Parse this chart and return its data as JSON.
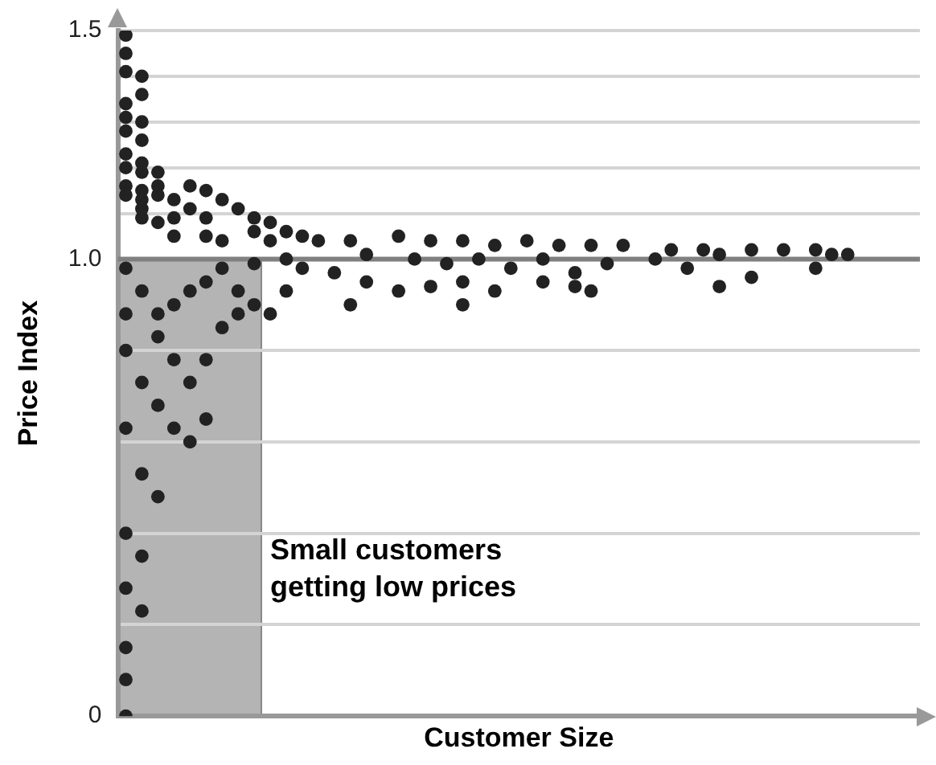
{
  "chart_data": {
    "type": "scatter",
    "xlabel": "Customer Size",
    "ylabel": "Price Index",
    "marker": "circle",
    "grid": "y",
    "tick_labels": "y",
    "legend": false,
    "ylim": [
      0,
      1.5
    ],
    "yticks": [
      0,
      {
        "value": 0.2,
        "label": null
      },
      {
        "value": 0.4,
        "label": null
      },
      {
        "value": 0.6,
        "label": null
      },
      {
        "value": 0.8,
        "label": null
      },
      {
        "value": 1,
        "label": "1.0"
      },
      {
        "value": 1.1,
        "label": null
      },
      {
        "value": 1.2,
        "label": null
      },
      {
        "value": 1.3,
        "label": null
      },
      {
        "value": 1.4,
        "label": null
      },
      1.5
    ],
    "ref_lines": [
      {
        "axis": "y",
        "value": 1,
        "color": "#808080"
      }
    ],
    "annotations": [
      "Small customers getting low prices"
    ],
    "categories": [
      null,
      null,
      null,
      null,
      null,
      null,
      null,
      null,
      null,
      null,
      null,
      null,
      null,
      null,
      null,
      null,
      null,
      null,
      null,
      null,
      null,
      null,
      null,
      null,
      null,
      null,
      null,
      null,
      null,
      null,
      null,
      null,
      null,
      null,
      null,
      null,
      null,
      null,
      null,
      null,
      null,
      null,
      null,
      null,
      null,
      null,
      null,
      null,
      null,
      null
    ],
    "series": [
      {
        "color": "#222222",
        "values": [
          1.49,
          1.4,
          1.19,
          1.13,
          1.16,
          1.15,
          1.13,
          1.11,
          1.09,
          1.08,
          1.06,
          1.05,
          1.04,
          0.97,
          1.04,
          1.01,
          null,
          1.05,
          1.0,
          1.04,
          0.99,
          1.04,
          1.0,
          1.03,
          0.98,
          1.04,
          1.0,
          1.03,
          0.97,
          1.03,
          0.99,
          1.03,
          null,
          1.0,
          1.02,
          0.98,
          1.02,
          1.01,
          null,
          1.02,
          null,
          1.02,
          null,
          1.02,
          1.01,
          1.01,
          null,
          null,
          null,
          null
        ]
      },
      {
        "color": "#222222",
        "values": [
          1.45,
          1.36,
          1.16,
          1.09,
          1.11,
          1.09,
          1.04,
          0.88,
          1.06,
          1.04,
          1.0,
          0.98,
          null,
          null,
          0.9,
          0.95,
          null,
          0.93,
          null,
          0.94,
          null,
          0.95,
          null,
          0.93,
          null,
          null,
          0.95,
          null,
          0.94,
          0.93,
          null,
          null,
          null,
          null,
          null,
          null,
          null,
          0.94,
          null,
          0.96,
          null,
          null,
          null,
          0.98,
          null,
          null,
          null,
          null,
          null,
          null
        ]
      },
      {
        "color": "#222222",
        "values": [
          1.41,
          1.3,
          1.14,
          1.05,
          0.93,
          1.05,
          0.98,
          0.93,
          0.99,
          0.88,
          0.93,
          null,
          null,
          null,
          null,
          null,
          null,
          null,
          null,
          null,
          null,
          0.9,
          null,
          null,
          null,
          null,
          null,
          null,
          null,
          null,
          null,
          null,
          null,
          null,
          null,
          null,
          null,
          null,
          null,
          null,
          null,
          null,
          null,
          null,
          null,
          null,
          null,
          null,
          null,
          null
        ]
      },
      {
        "color": "#222222",
        "values": [
          1.34,
          1.26,
          1.08,
          0.9,
          0.73,
          0.95,
          0.85,
          null,
          0.9,
          null,
          null,
          null,
          null,
          null,
          null,
          null,
          null,
          null,
          null,
          null,
          null,
          null,
          null,
          null,
          null,
          null,
          null,
          null,
          null,
          null,
          null,
          null,
          null,
          null,
          null,
          null,
          null,
          null,
          null,
          null,
          null,
          null,
          null,
          null,
          null,
          null,
          null,
          null,
          null,
          null
        ]
      },
      {
        "color": "#222222",
        "values": [
          1.31,
          null,
          0.88,
          0.78,
          0.6,
          0.78,
          null,
          null,
          null,
          null,
          null,
          null,
          null,
          null,
          null,
          null,
          null,
          null,
          null,
          null,
          null,
          null,
          null,
          null,
          null,
          null,
          null,
          null,
          null,
          null,
          null,
          null,
          null,
          null,
          null,
          null,
          null,
          null,
          null,
          null,
          null,
          null,
          null,
          null,
          null,
          null,
          null,
          null,
          null,
          null
        ]
      },
      {
        "color": "#222222",
        "values": [
          1.28,
          1.21,
          0.83,
          0.63,
          null,
          0.65,
          null,
          null,
          null,
          null,
          null,
          null,
          null,
          null,
          null,
          null,
          null,
          null,
          null,
          null,
          null,
          null,
          null,
          null,
          null,
          null,
          null,
          null,
          null,
          null,
          null,
          null,
          null,
          null,
          null,
          null,
          null,
          null,
          null,
          null,
          null,
          null,
          null,
          null,
          null,
          null,
          null,
          null,
          null,
          null
        ]
      },
      {
        "color": "#222222",
        "values": [
          1.23,
          1.19,
          0.68,
          null,
          null,
          null,
          null,
          null,
          null,
          null,
          null,
          null,
          null,
          null,
          null,
          null,
          null,
          null,
          null,
          null,
          null,
          null,
          null,
          null,
          null,
          null,
          null,
          null,
          null,
          null,
          null,
          null,
          null,
          null,
          null,
          null,
          null,
          null,
          null,
          null,
          null,
          null,
          null,
          null,
          null,
          null,
          null,
          null,
          null,
          null
        ]
      },
      {
        "color": "#222222",
        "values": [
          1.2,
          1.15,
          0.48,
          null,
          null,
          null,
          null,
          null,
          null,
          null,
          null,
          null,
          null,
          null,
          null,
          null,
          null,
          null,
          null,
          null,
          null,
          null,
          null,
          null,
          null,
          null,
          null,
          null,
          null,
          null,
          null,
          null,
          null,
          null,
          null,
          null,
          null,
          null,
          null,
          null,
          null,
          null,
          null,
          null,
          null,
          null,
          null,
          null,
          null,
          null
        ]
      },
      {
        "color": "#222222",
        "values": [
          1.16,
          1.13,
          null,
          null,
          null,
          null,
          null,
          null,
          null,
          null,
          null,
          null,
          null,
          null,
          null,
          null,
          null,
          null,
          null,
          null,
          null,
          null,
          null,
          null,
          null,
          null,
          null,
          null,
          null,
          null,
          null,
          null,
          null,
          null,
          null,
          null,
          null,
          null,
          null,
          null,
          null,
          null,
          null,
          null,
          null,
          null,
          null,
          null,
          null,
          null
        ]
      },
      {
        "color": "#222222",
        "values": [
          1.14,
          1.11,
          null,
          null,
          null,
          null,
          null,
          null,
          null,
          null,
          null,
          null,
          null,
          null,
          null,
          null,
          null,
          null,
          null,
          null,
          null,
          null,
          null,
          null,
          null,
          null,
          null,
          null,
          null,
          null,
          null,
          null,
          null,
          null,
          null,
          null,
          null,
          null,
          null,
          null,
          null,
          null,
          null,
          null,
          null,
          null,
          null,
          null,
          null,
          null
        ]
      },
      {
        "color": "#222222",
        "values": [
          0.98,
          1.09,
          null,
          null,
          null,
          null,
          null,
          null,
          null,
          null,
          null,
          null,
          null,
          null,
          null,
          null,
          null,
          null,
          null,
          null,
          null,
          null,
          null,
          null,
          null,
          null,
          null,
          null,
          null,
          null,
          null,
          null,
          null,
          null,
          null,
          null,
          null,
          null,
          null,
          null,
          null,
          null,
          null,
          null,
          null,
          null,
          null,
          null,
          null,
          null
        ]
      },
      {
        "color": "#222222",
        "values": [
          0.63,
          0.93,
          null,
          null,
          null,
          null,
          null,
          null,
          null,
          null,
          null,
          null,
          null,
          null,
          null,
          null,
          null,
          null,
          null,
          null,
          null,
          null,
          null,
          null,
          null,
          null,
          null,
          null,
          null,
          null,
          null,
          null,
          null,
          null,
          null,
          null,
          null,
          null,
          null,
          null,
          null,
          null,
          null,
          null,
          null,
          null,
          null,
          null,
          null,
          null
        ]
      },
      {
        "color": "#222222",
        "values": [
          0.4,
          0.73,
          null,
          null,
          null,
          null,
          null,
          null,
          null,
          null,
          null,
          null,
          null,
          null,
          null,
          null,
          null,
          null,
          null,
          null,
          null,
          null,
          null,
          null,
          null,
          null,
          null,
          null,
          null,
          null,
          null,
          null,
          null,
          null,
          null,
          null,
          null,
          null,
          null,
          null,
          null,
          null,
          null,
          null,
          null,
          null,
          null,
          null,
          null,
          null
        ]
      },
      {
        "color": "#222222",
        "values": [
          0.28,
          0.53,
          null,
          null,
          null,
          null,
          null,
          null,
          null,
          null,
          null,
          null,
          null,
          null,
          null,
          null,
          null,
          null,
          null,
          null,
          null,
          null,
          null,
          null,
          null,
          null,
          null,
          null,
          null,
          null,
          null,
          null,
          null,
          null,
          null,
          null,
          null,
          null,
          null,
          null,
          null,
          null,
          null,
          null,
          null,
          null,
          null,
          null,
          null,
          null
        ]
      },
      {
        "color": "#222222",
        "values": [
          0.15,
          0.35,
          null,
          null,
          null,
          null,
          null,
          null,
          null,
          null,
          null,
          null,
          null,
          null,
          null,
          null,
          null,
          null,
          null,
          null,
          null,
          null,
          null,
          null,
          null,
          null,
          null,
          null,
          null,
          null,
          null,
          null,
          null,
          null,
          null,
          null,
          null,
          null,
          null,
          null,
          null,
          null,
          null,
          null,
          null,
          null,
          null,
          null,
          null,
          null
        ]
      },
      {
        "color": "#222222",
        "values": [
          0.08,
          0.23,
          null,
          null,
          null,
          null,
          null,
          null,
          null,
          null,
          null,
          null,
          null,
          null,
          null,
          null,
          null,
          null,
          null,
          null,
          null,
          null,
          null,
          null,
          null,
          null,
          null,
          null,
          null,
          null,
          null,
          null,
          null,
          null,
          null,
          null,
          null,
          null,
          null,
          null,
          null,
          null,
          null,
          null,
          null,
          null,
          null,
          null,
          null,
          null
        ]
      },
      {
        "color": "#222222",
        "values": [
          0,
          null,
          null,
          null,
          null,
          null,
          null,
          null,
          null,
          null,
          null,
          null,
          null,
          null,
          null,
          null,
          null,
          null,
          null,
          null,
          null,
          null,
          null,
          null,
          null,
          null,
          null,
          null,
          null,
          null,
          null,
          null,
          null,
          null,
          null,
          null,
          null,
          null,
          null,
          null,
          null,
          null,
          null,
          null,
          null,
          null,
          null,
          null,
          null,
          null
        ]
      },
      {
        "color": "#222222",
        "values": [
          0.88,
          null,
          null,
          null,
          null,
          null,
          null,
          null,
          null,
          null,
          null,
          null,
          null,
          null,
          null,
          null,
          null,
          null,
          null,
          null,
          null,
          null,
          null,
          null,
          null,
          null,
          null,
          null,
          null,
          null,
          null,
          null,
          null,
          null,
          null,
          null,
          null,
          null,
          null,
          null,
          null,
          null,
          null,
          null,
          null,
          null,
          null,
          null,
          null,
          null
        ]
      },
      {
        "color": "#222222",
        "values": [
          0.8,
          null,
          null,
          null,
          null,
          null,
          null,
          null,
          null,
          null,
          null,
          null,
          null,
          null,
          null,
          null,
          null,
          null,
          null,
          null,
          null,
          null,
          null,
          null,
          null,
          null,
          null,
          null,
          null,
          null,
          null,
          null,
          null,
          null,
          null,
          null,
          null,
          null,
          null,
          null,
          null,
          null,
          null,
          null,
          null,
          null,
          null,
          null,
          null,
          null
        ]
      }
    ]
  }
}
